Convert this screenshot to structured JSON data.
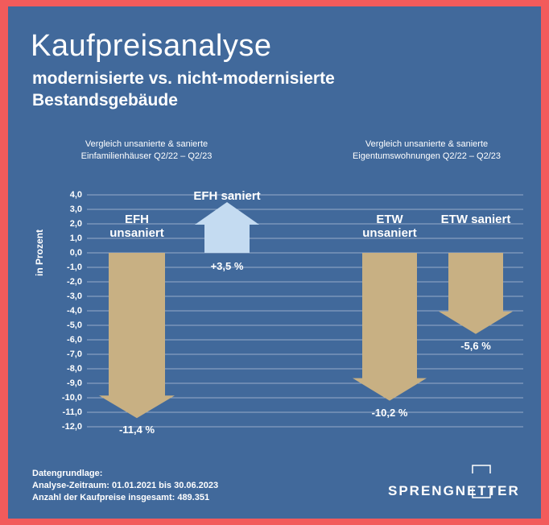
{
  "chart_data": {
    "type": "arrow-bar",
    "title": "Kaufpreisanalyse",
    "subtitle": "modernisierte vs. nicht-modernisierte Bestandsgebäude",
    "group_titles": [
      "Vergleich unsanierte & sanierte Einfamilienhäuser Q2/22 – Q2/23",
      "Vergleich unsanierte & sanierte Eigentumswohnungen Q2/22 – Q2/23"
    ],
    "ylabel": "in Prozent",
    "categories": [
      "EFH unsaniert",
      "EFH saniert",
      "ETW unsaniert",
      "ETW saniert"
    ],
    "values": [
      -11.4,
      3.5,
      -10.2,
      -5.6
    ],
    "value_labels": [
      "-11,4 %",
      "+3,5 %",
      "-10,2 %",
      "-5,6 %"
    ],
    "colors": [
      "#c8b083",
      "#c4dbf1",
      "#c8b083",
      "#c8b083"
    ],
    "ylim": [
      -12,
      4
    ],
    "yticks": [
      {
        "value": 4,
        "label": "4,0"
      },
      {
        "value": 3,
        "label": "3,0"
      },
      {
        "value": 2,
        "label": "2,0"
      },
      {
        "value": 1,
        "label": "1,0"
      },
      {
        "value": 0,
        "label": "0,0"
      },
      {
        "value": -1,
        "label": "-1,0"
      },
      {
        "value": -2,
        "label": "-2,0"
      },
      {
        "value": -3,
        "label": "-3,0"
      },
      {
        "value": -4,
        "label": "-4,0"
      },
      {
        "value": -5,
        "label": "-5,0"
      },
      {
        "value": -6,
        "label": "-6,0"
      },
      {
        "value": -7,
        "label": "-7,0"
      },
      {
        "value": -8,
        "label": "-8,0"
      },
      {
        "value": -9,
        "label": "-9,0"
      },
      {
        "value": -10,
        "label": "-10,0"
      },
      {
        "value": -11,
        "label": "-11,0"
      },
      {
        "value": -12,
        "label": "-12,0"
      }
    ],
    "grid": true,
    "footer": [
      "Datengrundlage:",
      "Analyse-Zeitraum: 01.01.2021 bis 30.06.2023",
      "Anzahl der Kaufpreise insgesamt: 489.351"
    ],
    "logo": "SPRENGNETTER"
  }
}
